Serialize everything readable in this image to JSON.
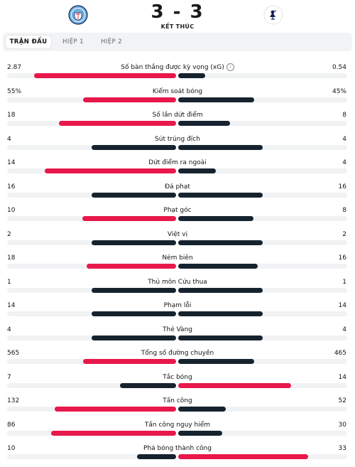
{
  "header": {
    "score": "3 - 3",
    "status": "KẾT THÚC",
    "home_crest_icon": "manchester-city-crest-icon",
    "away_crest_icon": "tottenham-crest-icon"
  },
  "tabs": [
    {
      "label": "TRẬN ĐẤU",
      "active": true
    },
    {
      "label": "HIỆP 1",
      "active": false
    },
    {
      "label": "HIỆP 2",
      "active": false
    }
  ],
  "colors": {
    "home": "#e8184a",
    "away": "#16232f",
    "track": "#f1f2f4"
  },
  "stats": [
    {
      "label": "Số bàn thắng được kỳ vọng (xG)",
      "home": "2.87",
      "away": "0.54",
      "home_share": 0.842,
      "away_share": 0.158,
      "winner": "home",
      "info": true
    },
    {
      "label": "Kiểm soát bóng",
      "home": "55%",
      "away": "45%",
      "home_share": 0.55,
      "away_share": 0.45,
      "winner": "home"
    },
    {
      "label": "Số lần dứt điểm",
      "home": "18",
      "away": "8",
      "home_share": 0.692,
      "away_share": 0.308,
      "winner": "home"
    },
    {
      "label": "Sút trúng đích",
      "home": "4",
      "away": "4",
      "home_share": 0.5,
      "away_share": 0.5,
      "winner": "none"
    },
    {
      "label": "Dứt điểm ra ngoài",
      "home": "14",
      "away": "4",
      "home_share": 0.778,
      "away_share": 0.222,
      "winner": "home"
    },
    {
      "label": "Đá phạt",
      "home": "16",
      "away": "16",
      "home_share": 0.5,
      "away_share": 0.5,
      "winner": "none"
    },
    {
      "label": "Phạt góc",
      "home": "10",
      "away": "8",
      "home_share": 0.556,
      "away_share": 0.444,
      "winner": "home"
    },
    {
      "label": "Việt vị",
      "home": "2",
      "away": "2",
      "home_share": 0.5,
      "away_share": 0.5,
      "winner": "none"
    },
    {
      "label": "Ném biên",
      "home": "18",
      "away": "16",
      "home_share": 0.529,
      "away_share": 0.471,
      "winner": "home"
    },
    {
      "label": "Thủ môn Cứu thua",
      "home": "1",
      "away": "1",
      "home_share": 0.5,
      "away_share": 0.5,
      "winner": "none"
    },
    {
      "label": "Phạm lỗi",
      "home": "14",
      "away": "14",
      "home_share": 0.5,
      "away_share": 0.5,
      "winner": "none"
    },
    {
      "label": "Thẻ Vàng",
      "home": "4",
      "away": "4",
      "home_share": 0.5,
      "away_share": 0.5,
      "winner": "none"
    },
    {
      "label": "Tổng số đường chuyền",
      "home": "565",
      "away": "465",
      "home_share": 0.549,
      "away_share": 0.451,
      "winner": "home"
    },
    {
      "label": "Tắc bóng",
      "home": "7",
      "away": "14",
      "home_share": 0.333,
      "away_share": 0.667,
      "winner": "away"
    },
    {
      "label": "Tấn công",
      "home": "132",
      "away": "52",
      "home_share": 0.717,
      "away_share": 0.283,
      "winner": "home"
    },
    {
      "label": "Tấn công nguy hiểm",
      "home": "86",
      "away": "30",
      "home_share": 0.741,
      "away_share": 0.259,
      "winner": "home"
    },
    {
      "label": "Phá bóng thành công",
      "home": "10",
      "away": "33",
      "home_share": 0.233,
      "away_share": 0.767,
      "winner": "away"
    }
  ]
}
